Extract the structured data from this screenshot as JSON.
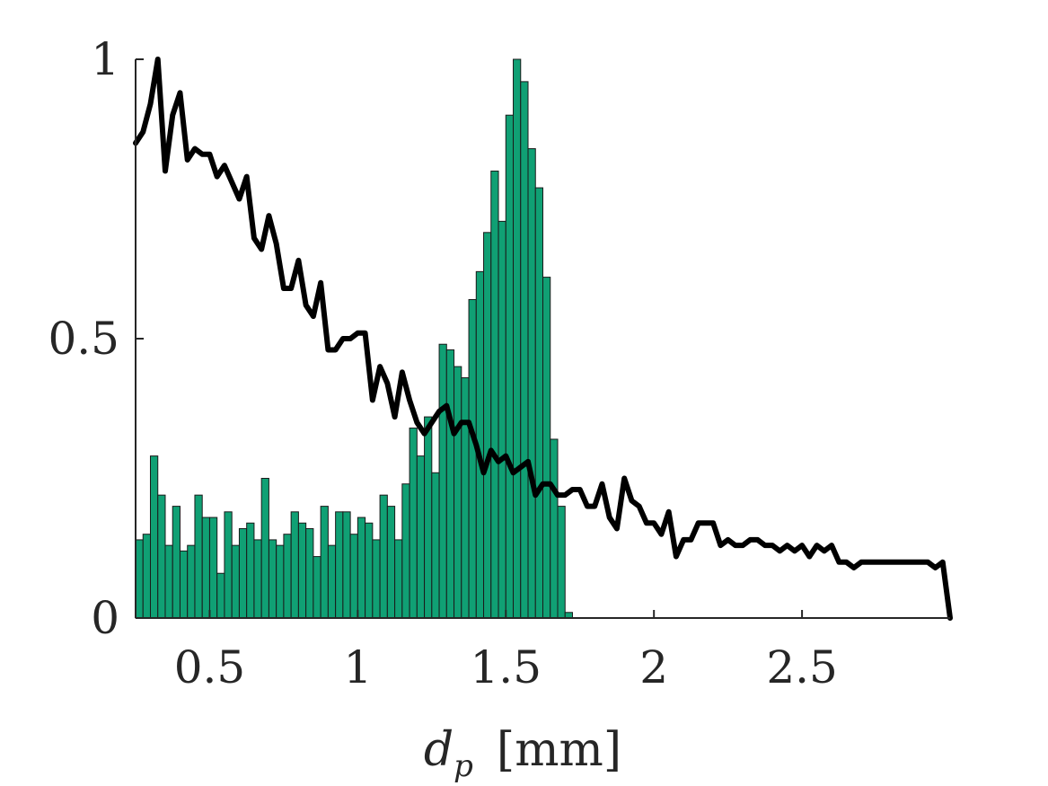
{
  "chart_data": {
    "type": "bar",
    "xlabel": "d_p [mm]",
    "xlabel_main": "d",
    "xlabel_sub": "p",
    "xlabel_unit": "[mm]",
    "ylabel": "",
    "xlim": [
      0.25,
      3.0
    ],
    "ylim": [
      0,
      1
    ],
    "xticks": [
      0.5,
      1,
      1.5,
      2,
      2.5
    ],
    "xtick_labels": [
      "0.5",
      "1",
      "1.5",
      "2",
      "2.5"
    ],
    "yticks": [
      0,
      0.5,
      1
    ],
    "ytick_labels": [
      "0",
      "0.5",
      "1"
    ],
    "grid": false,
    "colors": {
      "bars": "#10a074",
      "line": "#000000",
      "axis": "#262626"
    },
    "series": [
      {
        "type": "bar",
        "bin_width": 0.025,
        "x_start": 0.25,
        "values": [
          0.14,
          0.15,
          0.29,
          0.22,
          0.13,
          0.2,
          0.12,
          0.13,
          0.22,
          0.18,
          0.18,
          0.08,
          0.19,
          0.13,
          0.16,
          0.17,
          0.14,
          0.25,
          0.14,
          0.13,
          0.15,
          0.19,
          0.17,
          0.16,
          0.11,
          0.2,
          0.13,
          0.19,
          0.19,
          0.15,
          0.18,
          0.17,
          0.14,
          0.22,
          0.2,
          0.14,
          0.24,
          0.34,
          0.29,
          0.36,
          0.26,
          0.49,
          0.48,
          0.45,
          0.43,
          0.57,
          0.62,
          0.69,
          0.8,
          0.71,
          0.9,
          1.0,
          0.96,
          0.84,
          0.77,
          0.61,
          0.32,
          0.2,
          0.01
        ]
      },
      {
        "type": "line",
        "x": [
          0.25,
          0.275,
          0.3,
          0.325,
          0.35,
          0.375,
          0.4,
          0.425,
          0.45,
          0.475,
          0.5,
          0.525,
          0.55,
          0.575,
          0.6,
          0.625,
          0.65,
          0.675,
          0.7,
          0.725,
          0.75,
          0.775,
          0.8,
          0.825,
          0.85,
          0.875,
          0.9,
          0.925,
          0.95,
          0.975,
          1.0,
          1.025,
          1.05,
          1.075,
          1.1,
          1.125,
          1.15,
          1.175,
          1.2,
          1.225,
          1.25,
          1.275,
          1.3,
          1.325,
          1.35,
          1.375,
          1.4,
          1.425,
          1.45,
          1.475,
          1.5,
          1.525,
          1.55,
          1.575,
          1.6,
          1.625,
          1.65,
          1.675,
          1.7,
          1.725,
          1.75,
          1.775,
          1.8,
          1.825,
          1.85,
          1.875,
          1.9,
          1.925,
          1.95,
          1.975,
          2.0,
          2.025,
          2.05,
          2.075,
          2.1,
          2.125,
          2.15,
          2.175,
          2.2,
          2.225,
          2.25,
          2.275,
          2.3,
          2.325,
          2.35,
          2.375,
          2.4,
          2.425,
          2.45,
          2.475,
          2.5,
          2.525,
          2.55,
          2.575,
          2.6,
          2.625,
          2.65,
          2.675,
          2.7,
          2.725,
          2.75,
          2.775,
          2.8,
          2.825,
          2.85,
          2.875,
          2.9,
          2.925,
          2.95,
          2.975,
          3.0
        ],
        "y": [
          0.85,
          0.87,
          0.92,
          1.0,
          0.8,
          0.9,
          0.94,
          0.82,
          0.84,
          0.83,
          0.83,
          0.79,
          0.81,
          0.78,
          0.75,
          0.79,
          0.68,
          0.66,
          0.72,
          0.67,
          0.59,
          0.59,
          0.64,
          0.56,
          0.54,
          0.6,
          0.48,
          0.48,
          0.5,
          0.5,
          0.51,
          0.51,
          0.39,
          0.45,
          0.42,
          0.36,
          0.44,
          0.39,
          0.35,
          0.33,
          0.35,
          0.37,
          0.38,
          0.33,
          0.35,
          0.35,
          0.31,
          0.26,
          0.3,
          0.28,
          0.29,
          0.26,
          0.27,
          0.28,
          0.22,
          0.24,
          0.24,
          0.22,
          0.22,
          0.23,
          0.23,
          0.2,
          0.2,
          0.24,
          0.18,
          0.16,
          0.25,
          0.21,
          0.2,
          0.17,
          0.17,
          0.15,
          0.19,
          0.11,
          0.14,
          0.14,
          0.17,
          0.17,
          0.17,
          0.13,
          0.14,
          0.13,
          0.13,
          0.14,
          0.14,
          0.13,
          0.13,
          0.12,
          0.13,
          0.12,
          0.13,
          0.11,
          0.13,
          0.12,
          0.13,
          0.1,
          0.1,
          0.09,
          0.1,
          0.1,
          0.1,
          0.1,
          0.1,
          0.1,
          0.1,
          0.1,
          0.1,
          0.1,
          0.09,
          0.1,
          0.0
        ]
      }
    ]
  }
}
